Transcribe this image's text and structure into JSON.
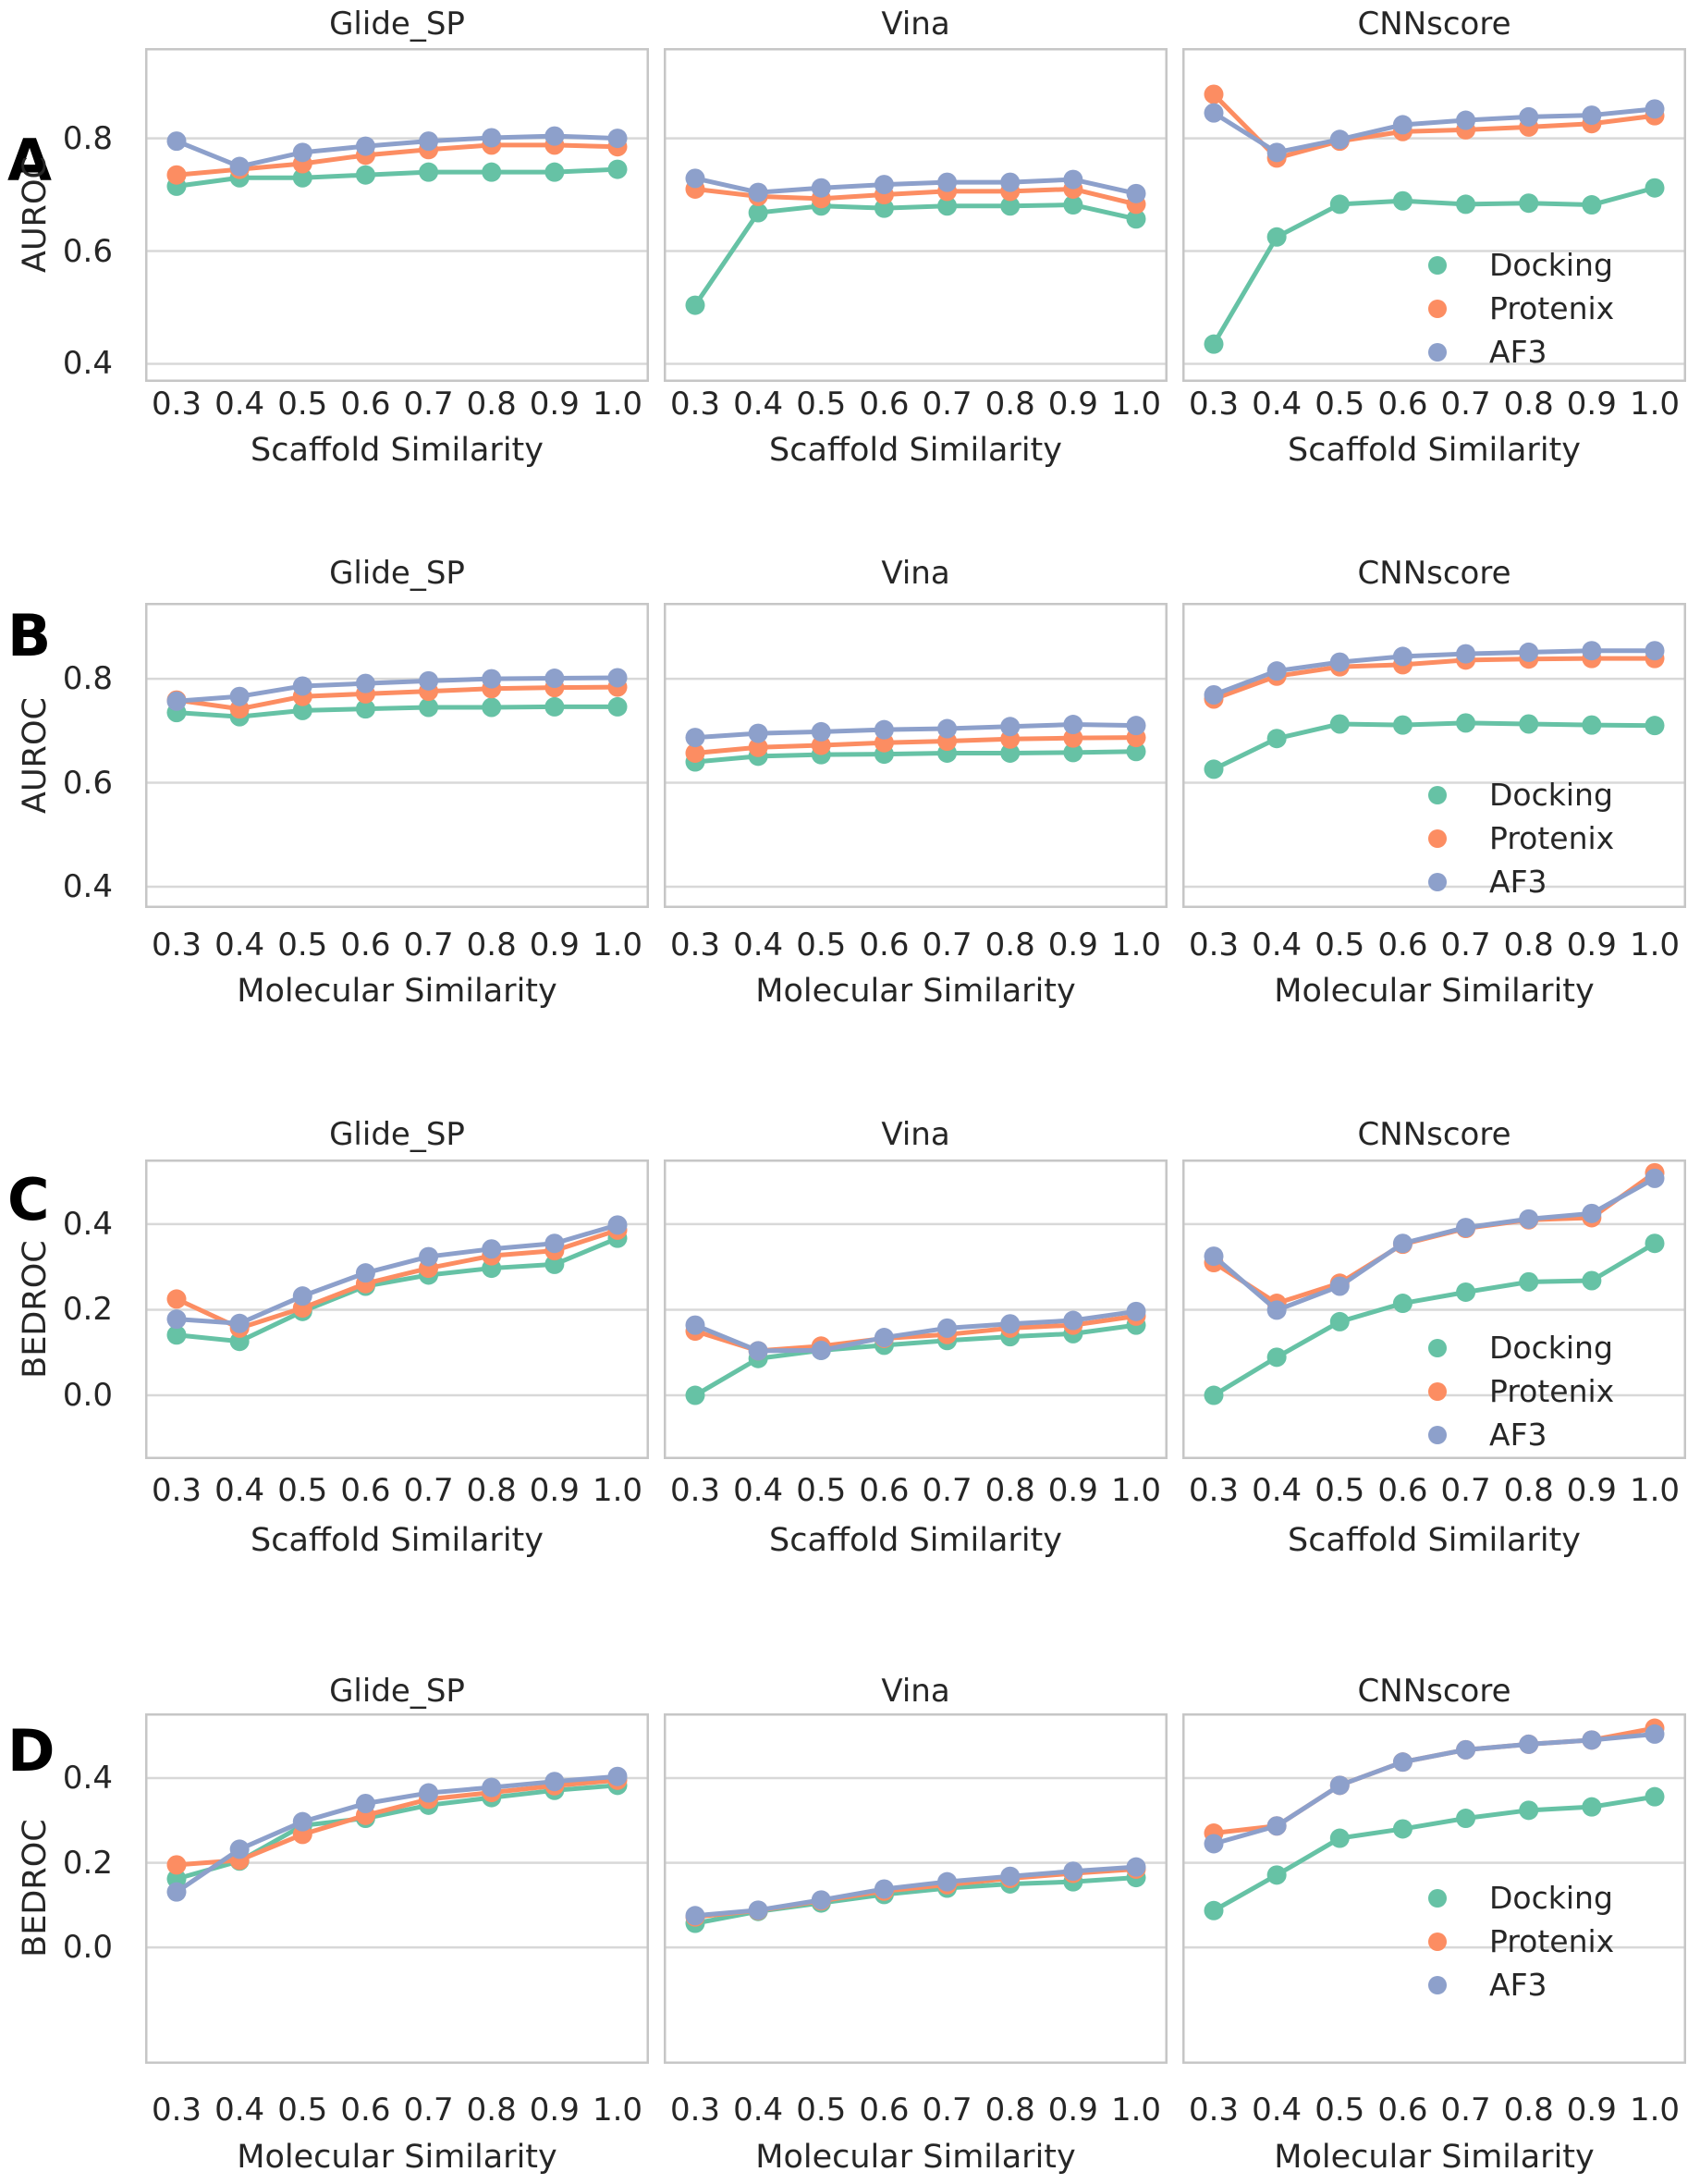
{
  "colors": {
    "docking": "#66c2a5",
    "protenix": "#fc8d62",
    "af3": "#8da0cb",
    "grid": "#d8d8d8",
    "spine": "#c6c6c6",
    "text": "#262626"
  },
  "legend": {
    "position": "lower right",
    "items": [
      {
        "label": "Docking",
        "color": "#66c2a5"
      },
      {
        "label": "Protenix",
        "color": "#fc8d62"
      },
      {
        "label": "AF3",
        "color": "#8da0cb"
      }
    ]
  },
  "chart_data": [
    {
      "row_label": "A",
      "type": "line",
      "grid": true,
      "ylabel": "AUROC",
      "xlabel": "Scaffold Similarity",
      "x": [
        0.3,
        0.4,
        0.5,
        0.6,
        0.7,
        0.8,
        0.9,
        1.0
      ],
      "x_ticklabels": [
        "0.3",
        "0.4",
        "0.5",
        "0.6",
        "0.7",
        "0.8",
        "0.9",
        "1.0"
      ],
      "yticks": [
        0.4,
        0.6,
        0.8
      ],
      "ytick_labels": [
        "0.4",
        "0.6",
        "0.8"
      ],
      "ylim": [
        0.368,
        0.96
      ],
      "legend_panel": 2,
      "panels": [
        {
          "title": "Glide_SP",
          "series": [
            {
              "name": "Docking",
              "color": "#66c2a5",
              "values": [
                0.715,
                0.73,
                0.73,
                0.735,
                0.74,
                0.74,
                0.74,
                0.745
              ]
            },
            {
              "name": "Protenix",
              "color": "#fc8d62",
              "values": [
                0.735,
                0.745,
                0.755,
                0.77,
                0.78,
                0.788,
                0.788,
                0.785
              ]
            },
            {
              "name": "AF3",
              "color": "#8da0cb",
              "values": [
                0.795,
                0.75,
                0.775,
                0.786,
                0.795,
                0.801,
                0.804,
                0.8
              ]
            }
          ]
        },
        {
          "title": "Vina",
          "series": [
            {
              "name": "Docking",
              "color": "#66c2a5",
              "values": [
                0.504,
                0.668,
                0.68,
                0.676,
                0.68,
                0.68,
                0.682,
                0.657
              ]
            },
            {
              "name": "Protenix",
              "color": "#fc8d62",
              "values": [
                0.71,
                0.697,
                0.693,
                0.7,
                0.706,
                0.706,
                0.71,
                0.683
              ]
            },
            {
              "name": "AF3",
              "color": "#8da0cb",
              "values": [
                0.729,
                0.704,
                0.712,
                0.718,
                0.722,
                0.722,
                0.727,
                0.702
              ]
            }
          ]
        },
        {
          "title": "CNNscore",
          "series": [
            {
              "name": "Docking",
              "color": "#66c2a5",
              "values": [
                0.435,
                0.625,
                0.683,
                0.689,
                0.683,
                0.685,
                0.682,
                0.712
              ]
            },
            {
              "name": "Protenix",
              "color": "#fc8d62",
              "values": [
                0.878,
                0.765,
                0.795,
                0.812,
                0.815,
                0.82,
                0.826,
                0.84
              ]
            },
            {
              "name": "AF3",
              "color": "#8da0cb",
              "values": [
                0.845,
                0.775,
                0.798,
                0.824,
                0.832,
                0.838,
                0.841,
                0.852
              ]
            }
          ]
        }
      ]
    },
    {
      "row_label": "B",
      "type": "line",
      "grid": true,
      "ylabel": "AUROC",
      "xlabel": "Molecular Similarity",
      "x": [
        0.3,
        0.4,
        0.5,
        0.6,
        0.7,
        0.8,
        0.9,
        1.0
      ],
      "x_ticklabels": [
        "0.3",
        "0.4",
        "0.5",
        "0.6",
        "0.7",
        "0.8",
        "0.9",
        "1.0"
      ],
      "yticks": [
        0.4,
        0.6,
        0.8
      ],
      "ytick_labels": [
        "0.4",
        "0.6",
        "0.8"
      ],
      "ylim": [
        0.359,
        0.946
      ],
      "legend_panel": 2,
      "panels": [
        {
          "title": "Glide_SP",
          "series": [
            {
              "name": "Docking",
              "color": "#66c2a5",
              "values": [
                0.735,
                0.727,
                0.739,
                0.742,
                0.745,
                0.745,
                0.746,
                0.746
              ]
            },
            {
              "name": "Protenix",
              "color": "#fc8d62",
              "values": [
                0.759,
                0.742,
                0.766,
                0.771,
                0.776,
                0.781,
                0.783,
                0.784
              ]
            },
            {
              "name": "AF3",
              "color": "#8da0cb",
              "values": [
                0.757,
                0.766,
                0.786,
                0.791,
                0.796,
                0.8,
                0.801,
                0.802
              ]
            }
          ]
        },
        {
          "title": "Vina",
          "series": [
            {
              "name": "Docking",
              "color": "#66c2a5",
              "values": [
                0.64,
                0.651,
                0.654,
                0.655,
                0.657,
                0.657,
                0.658,
                0.66
              ]
            },
            {
              "name": "Protenix",
              "color": "#fc8d62",
              "values": [
                0.657,
                0.668,
                0.672,
                0.677,
                0.68,
                0.684,
                0.686,
                0.687
              ]
            },
            {
              "name": "AF3",
              "color": "#8da0cb",
              "values": [
                0.687,
                0.695,
                0.698,
                0.702,
                0.704,
                0.708,
                0.712,
                0.71
              ]
            }
          ]
        },
        {
          "title": "CNNscore",
          "series": [
            {
              "name": "Docking",
              "color": "#66c2a5",
              "values": [
                0.626,
                0.685,
                0.713,
                0.711,
                0.715,
                0.713,
                0.711,
                0.71
              ]
            },
            {
              "name": "Protenix",
              "color": "#fc8d62",
              "values": [
                0.761,
                0.805,
                0.823,
                0.827,
                0.836,
                0.838,
                0.839,
                0.839
              ]
            },
            {
              "name": "AF3",
              "color": "#8da0cb",
              "values": [
                0.769,
                0.815,
                0.832,
                0.843,
                0.848,
                0.851,
                0.854,
                0.854
              ]
            }
          ]
        }
      ]
    },
    {
      "row_label": "C",
      "type": "line",
      "grid": true,
      "ylabel": "BEDROC",
      "xlabel": "Scaffold Similarity",
      "x": [
        0.3,
        0.4,
        0.5,
        0.6,
        0.7,
        0.8,
        0.9,
        1.0
      ],
      "x_ticklabels": [
        "0.3",
        "0.4",
        "0.5",
        "0.6",
        "0.7",
        "0.8",
        "0.9",
        "1.0"
      ],
      "yticks": [
        0.0,
        0.2,
        0.4
      ],
      "ytick_labels": [
        "0.0",
        "0.2",
        "0.4"
      ],
      "ylim": [
        -0.149,
        0.551
      ],
      "legend_panel": 2,
      "panels": [
        {
          "title": "Glide_SP",
          "series": [
            {
              "name": "Docking",
              "color": "#66c2a5",
              "values": [
                0.141,
                0.126,
                0.196,
                0.255,
                0.281,
                0.297,
                0.306,
                0.367
              ]
            },
            {
              "name": "Protenix",
              "color": "#fc8d62",
              "values": [
                0.225,
                0.157,
                0.204,
                0.261,
                0.297,
                0.326,
                0.338,
                0.386
              ]
            },
            {
              "name": "AF3",
              "color": "#8da0cb",
              "values": [
                0.178,
                0.168,
                0.232,
                0.286,
                0.324,
                0.342,
                0.355,
                0.398
              ]
            }
          ]
        },
        {
          "title": "Vina",
          "series": [
            {
              "name": "Docking",
              "color": "#66c2a5",
              "values": [
                0.0,
                0.086,
                0.105,
                0.117,
                0.128,
                0.137,
                0.144,
                0.164
              ]
            },
            {
              "name": "Protenix",
              "color": "#fc8d62",
              "values": [
                0.15,
                0.104,
                0.115,
                0.133,
                0.142,
                0.157,
                0.164,
                0.185
              ]
            },
            {
              "name": "AF3",
              "color": "#8da0cb",
              "values": [
                0.164,
                0.104,
                0.105,
                0.135,
                0.157,
                0.167,
                0.175,
                0.196
              ]
            }
          ]
        },
        {
          "title": "CNNscore",
          "series": [
            {
              "name": "Docking",
              "color": "#66c2a5",
              "values": [
                0.0,
                0.089,
                0.172,
                0.215,
                0.241,
                0.265,
                0.268,
                0.355
              ]
            },
            {
              "name": "Protenix",
              "color": "#fc8d62",
              "values": [
                0.31,
                0.215,
                0.262,
                0.353,
                0.39,
                0.41,
                0.415,
                0.52
              ]
            },
            {
              "name": "AF3",
              "color": "#8da0cb",
              "values": [
                0.325,
                0.199,
                0.255,
                0.355,
                0.392,
                0.412,
                0.425,
                0.507
              ]
            }
          ]
        }
      ]
    },
    {
      "row_label": "D",
      "type": "line",
      "grid": true,
      "ylabel": "BEDROC",
      "xlabel": "Molecular Similarity",
      "x": [
        0.3,
        0.4,
        0.5,
        0.6,
        0.7,
        0.8,
        0.9,
        1.0
      ],
      "x_ticklabels": [
        "0.3",
        "0.4",
        "0.5",
        "0.6",
        "0.7",
        "0.8",
        "0.9",
        "1.0"
      ],
      "yticks": [
        0.0,
        0.2,
        0.4
      ],
      "ytick_labels": [
        "0.0",
        "0.2",
        "0.4"
      ],
      "ylim": [
        -0.275,
        0.553
      ],
      "legend_panel": 2,
      "panels": [
        {
          "title": "Glide_SP",
          "series": [
            {
              "name": "Docking",
              "color": "#66c2a5",
              "values": [
                0.162,
                0.204,
                0.288,
                0.305,
                0.336,
                0.354,
                0.371,
                0.383
              ]
            },
            {
              "name": "Protenix",
              "color": "#fc8d62",
              "values": [
                0.195,
                0.206,
                0.267,
                0.312,
                0.35,
                0.366,
                0.382,
                0.395
              ]
            },
            {
              "name": "AF3",
              "color": "#8da0cb",
              "values": [
                0.131,
                0.232,
                0.297,
                0.34,
                0.365,
                0.378,
                0.392,
                0.404
              ]
            }
          ]
        },
        {
          "title": "Vina",
          "series": [
            {
              "name": "Docking",
              "color": "#66c2a5",
              "values": [
                0.057,
                0.085,
                0.105,
                0.125,
                0.14,
                0.15,
                0.155,
                0.165
              ]
            },
            {
              "name": "Protenix",
              "color": "#fc8d62",
              "values": [
                0.072,
                0.087,
                0.11,
                0.133,
                0.148,
                0.163,
                0.175,
                0.185
              ]
            },
            {
              "name": "AF3",
              "color": "#8da0cb",
              "values": [
                0.075,
                0.088,
                0.112,
                0.138,
                0.155,
                0.168,
                0.18,
                0.19
              ]
            }
          ]
        },
        {
          "title": "CNNscore",
          "series": [
            {
              "name": "Docking",
              "color": "#66c2a5",
              "values": [
                0.087,
                0.171,
                0.258,
                0.28,
                0.305,
                0.324,
                0.332,
                0.356
              ]
            },
            {
              "name": "Protenix",
              "color": "#fc8d62",
              "values": [
                0.27,
                0.287,
                0.383,
                0.438,
                0.467,
                0.48,
                0.49,
                0.518
              ]
            },
            {
              "name": "AF3",
              "color": "#8da0cb",
              "values": [
                0.245,
                0.287,
                0.383,
                0.438,
                0.467,
                0.48,
                0.49,
                0.504
              ]
            }
          ]
        }
      ]
    }
  ]
}
